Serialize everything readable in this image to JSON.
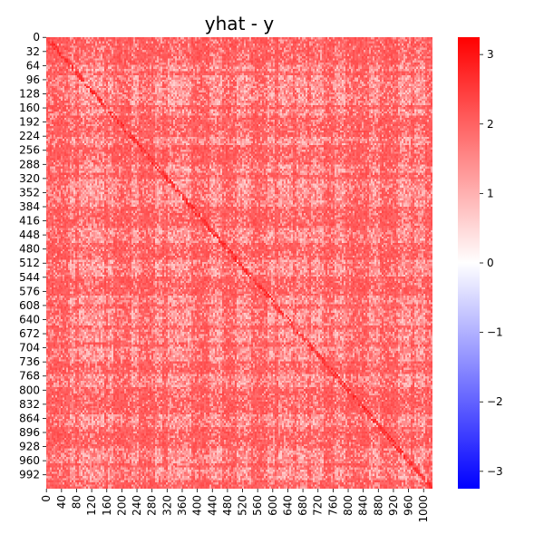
{
  "chart_data": {
    "type": "heatmap",
    "title": "yhat - y",
    "xlabel": "",
    "ylabel": "",
    "matrix_size": 1024,
    "x_tick_labels": [
      "0",
      "40",
      "80",
      "120",
      "160",
      "200",
      "240",
      "280",
      "320",
      "360",
      "400",
      "440",
      "480",
      "520",
      "560",
      "600",
      "640",
      "680",
      "720",
      "760",
      "800",
      "840",
      "880",
      "920",
      "960",
      "1000"
    ],
    "y_tick_labels": [
      "0",
      "32",
      "64",
      "96",
      "128",
      "160",
      "192",
      "224",
      "256",
      "288",
      "320",
      "352",
      "384",
      "416",
      "448",
      "480",
      "512",
      "544",
      "576",
      "608",
      "640",
      "672",
      "704",
      "736",
      "768",
      "800",
      "832",
      "864",
      "896",
      "928",
      "960",
      "992"
    ],
    "colorbar": {
      "vmin": -3.25,
      "vmax": 3.25,
      "ticks": [
        3,
        2,
        1,
        0,
        -1,
        -2,
        -3
      ],
      "tick_labels": [
        "3",
        "2",
        "1",
        "0",
        "−1",
        "−2",
        "−3"
      ],
      "colormap": "bwr",
      "colors": {
        "low": "#0000ff",
        "mid": "#ffffff",
        "high": "#ff0000"
      }
    },
    "pattern": {
      "base_value": 2.1,
      "light_bands": [
        [
          58,
          75
        ],
        [
          85,
          150
        ],
        [
          160,
          176
        ],
        [
          225,
          240
        ],
        [
          285,
          305
        ],
        [
          320,
          380
        ],
        [
          430,
          465
        ],
        [
          500,
          540
        ],
        [
          585,
          600
        ],
        [
          615,
          650
        ],
        [
          660,
          690
        ],
        [
          700,
          730
        ],
        [
          760,
          790
        ],
        [
          855,
          880
        ],
        [
          930,
          965
        ],
        [
          975,
          1000
        ]
      ],
      "light_band_value": 0.6,
      "diagonal_value": 2.9
    }
  }
}
